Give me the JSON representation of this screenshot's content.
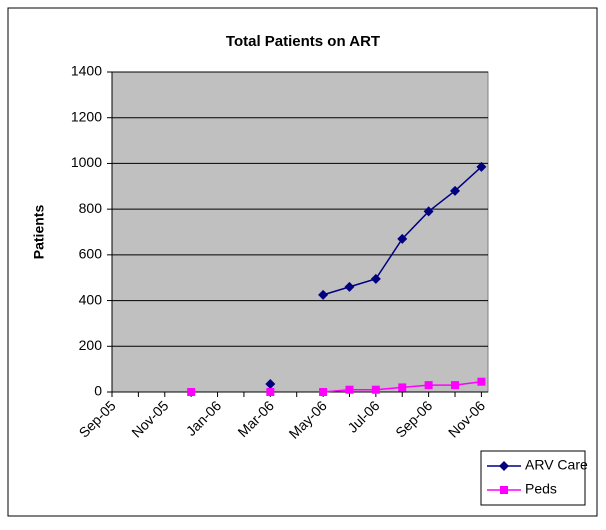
{
  "chart_data": {
    "type": "line",
    "title": "Total Patients on ART",
    "y_label": "Patients",
    "categories": [
      "Sep-05",
      null,
      "Nov-05",
      null,
      "Jan-06",
      null,
      "Mar-06",
      null,
      "May-06",
      null,
      "Jul-06",
      null,
      "Sep-06",
      null,
      "Nov-06"
    ],
    "series": [
      {
        "name": "ARV Care",
        "color": "#000080",
        "marker": "diamond",
        "values": [
          null,
          null,
          null,
          null,
          null,
          null,
          35,
          null,
          425,
          460,
          495,
          670,
          790,
          880,
          985
        ]
      },
      {
        "name": "Peds",
        "color": "#ff00ff",
        "marker": "square",
        "values": [
          null,
          null,
          null,
          0,
          null,
          null,
          0,
          null,
          0,
          10,
          10,
          20,
          30,
          30,
          45
        ]
      }
    ],
    "ylim": [
      0,
      1400
    ],
    "yticks": [
      0,
      200,
      400,
      600,
      800,
      1000,
      1200,
      1400
    ],
    "grid": true,
    "legend": "bottom-right"
  }
}
